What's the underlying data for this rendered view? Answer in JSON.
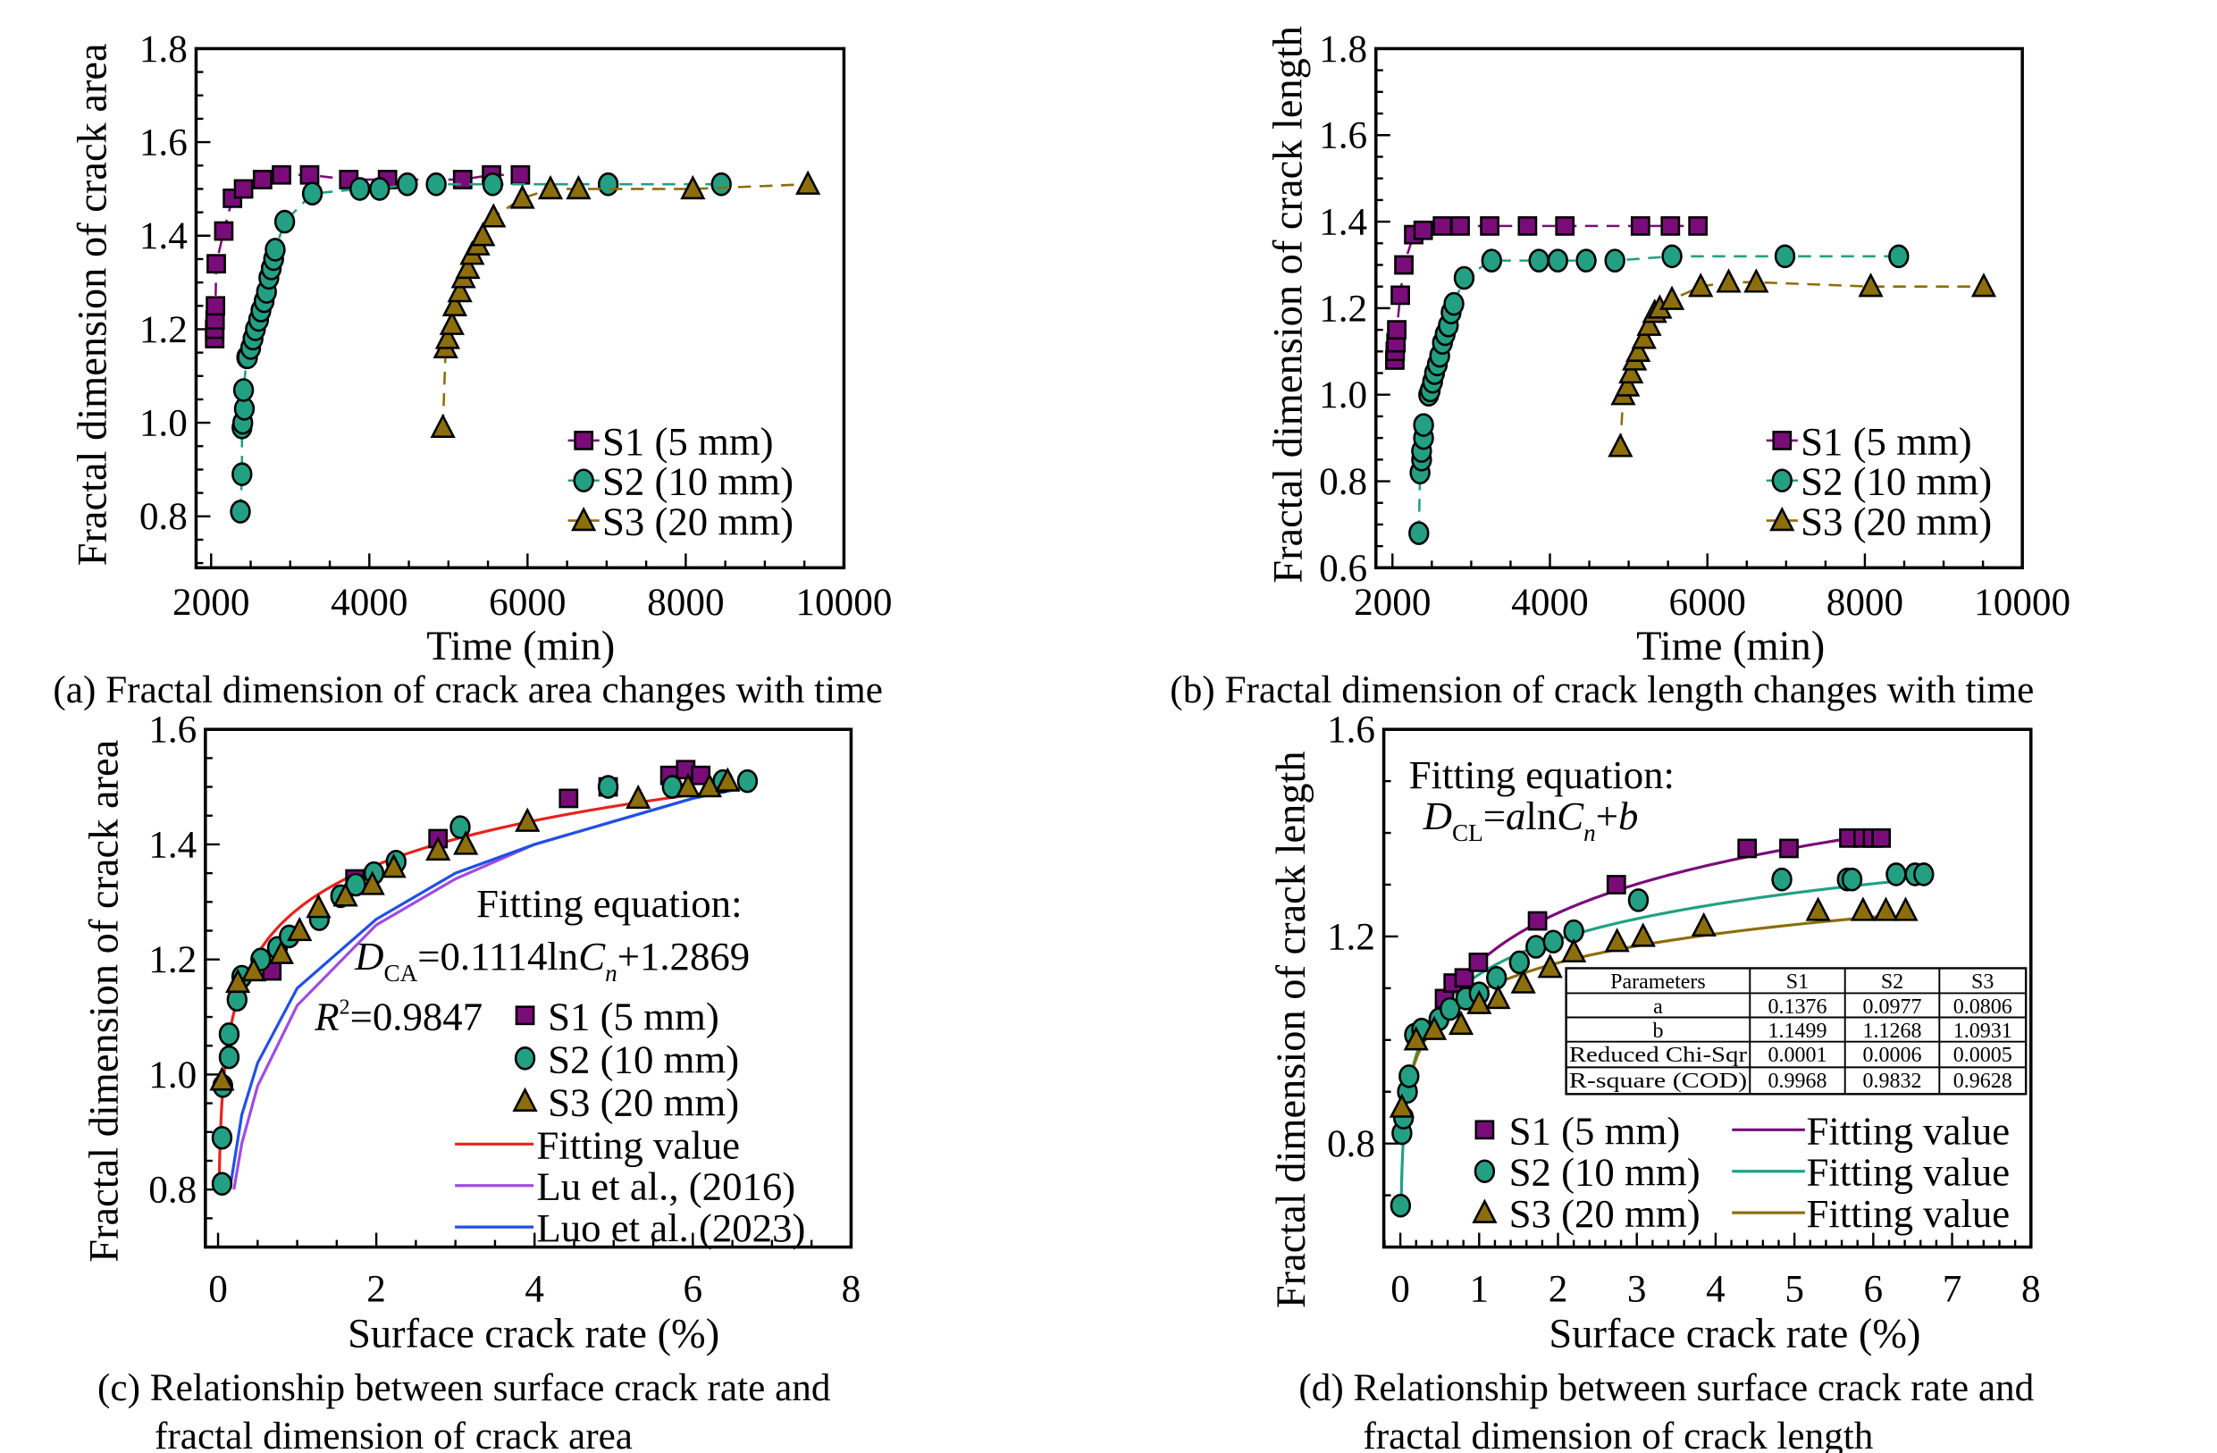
{
  "colors": {
    "S1": "#7a0c7a",
    "S2": "#23a083",
    "S3": "#8c6e0c",
    "fit_c": "#e8231c",
    "lu": "#a14be0",
    "luo": "#2050e6"
  },
  "chart_data": [
    {
      "type": "scatter",
      "caption": "(a) Fractal dimension of crack area changes with time",
      "xlabel": "Time (min)",
      "ylabel": "Fractal dimension of crack area",
      "xlim": [
        1810,
        10000
      ],
      "ylim": [
        0.69,
        1.8
      ],
      "xticks": [
        "2000",
        "4000",
        "6000",
        "8000",
        "10000"
      ],
      "yticks": [
        "0.8",
        "1.0",
        "1.2",
        "1.4",
        "1.6",
        "1.8"
      ],
      "legend_position": "bottom-right",
      "series": [
        {
          "name": "S1 (5 mm)",
          "marker": "square",
          "color": "#7a0c7a",
          "x": [
            2045,
            2045,
            2050,
            2055,
            2065,
            2160,
            2270,
            2410,
            2650,
            2890,
            3245,
            3740,
            4230,
            5180,
            5545,
            5910
          ],
          "y": [
            1.18,
            1.2,
            1.22,
            1.25,
            1.34,
            1.41,
            1.48,
            1.5,
            1.52,
            1.53,
            1.53,
            1.52,
            1.52,
            1.52,
            1.53,
            1.53
          ]
        },
        {
          "name": "S2 (10 mm)",
          "marker": "circle",
          "color": "#23a083",
          "x": [
            2370,
            2390,
            2390,
            2400,
            2420,
            2410,
            2450,
            2460,
            2500,
            2530,
            2560,
            2600,
            2630,
            2670,
            2700,
            2730,
            2760,
            2790,
            2810,
            2930,
            3280,
            3880,
            4130,
            4480,
            4845,
            5560,
            7020,
            8450
          ],
          "y": [
            0.81,
            0.89,
            0.99,
            1.0,
            1.03,
            1.07,
            1.14,
            1.14,
            1.16,
            1.18,
            1.2,
            1.22,
            1.24,
            1.26,
            1.28,
            1.31,
            1.33,
            1.35,
            1.37,
            1.43,
            1.49,
            1.5,
            1.5,
            1.51,
            1.51,
            1.51,
            1.51,
            1.51
          ]
        },
        {
          "name": "S3 (20 mm)",
          "marker": "triangle",
          "color": "#8c6e0c",
          "x": [
            4930,
            4965,
            4990,
            5045,
            5080,
            5145,
            5190,
            5245,
            5300,
            5370,
            5435,
            5570,
            5935,
            6290,
            6645,
            8090,
            9545
          ],
          "y": [
            0.99,
            1.16,
            1.18,
            1.21,
            1.25,
            1.28,
            1.31,
            1.33,
            1.36,
            1.38,
            1.4,
            1.44,
            1.48,
            1.5,
            1.5,
            1.5,
            1.51
          ]
        }
      ]
    },
    {
      "type": "scatter",
      "caption": "(b) Fractal dimension of crack length changes with time",
      "xlabel": "Time (min)",
      "ylabel": "Fractal dimension of crack length",
      "xlim": [
        1790,
        10000
      ],
      "ylim": [
        0.6,
        1.8
      ],
      "xticks": [
        "2000",
        "4000",
        "6000",
        "8000",
        "10000"
      ],
      "yticks": [
        "0.6",
        "0.8",
        "1.0",
        "1.2",
        "1.4",
        "1.6",
        "1.8"
      ],
      "legend_position": "bottom-right",
      "series": [
        {
          "name": "S1 (5 mm)",
          "marker": "square",
          "color": "#7a0c7a",
          "x": [
            2030,
            2035,
            2045,
            2055,
            2100,
            2145,
            2270,
            2390,
            2635,
            2860,
            3235,
            3715,
            4190,
            5150,
            5530,
            5880
          ],
          "y": [
            1.08,
            1.1,
            1.12,
            1.15,
            1.23,
            1.3,
            1.37,
            1.38,
            1.39,
            1.39,
            1.39,
            1.39,
            1.39,
            1.39,
            1.39,
            1.39
          ]
        },
        {
          "name": "S2 (10 mm)",
          "marker": "circle",
          "color": "#23a083",
          "x": [
            2335,
            2350,
            2370,
            2370,
            2395,
            2395,
            2460,
            2480,
            2510,
            2535,
            2570,
            2600,
            2635,
            2670,
            2710,
            2745,
            2780,
            2910,
            3260,
            3860,
            4100,
            4460,
            4825,
            5550,
            6985,
            8430
          ],
          "y": [
            0.68,
            0.82,
            0.85,
            0.87,
            0.9,
            0.93,
            1.0,
            1.01,
            1.03,
            1.05,
            1.07,
            1.09,
            1.12,
            1.14,
            1.16,
            1.19,
            1.21,
            1.27,
            1.31,
            1.31,
            1.31,
            1.31,
            1.31,
            1.32,
            1.32,
            1.32
          ]
        },
        {
          "name": "S3 (20 mm)",
          "marker": "triangle",
          "color": "#8c6e0c",
          "x": [
            4895,
            4930,
            4985,
            5030,
            5075,
            5120,
            5195,
            5260,
            5330,
            5395,
            5550,
            5915,
            6270,
            6620,
            8075,
            9510
          ],
          "y": [
            0.88,
            1.0,
            1.02,
            1.05,
            1.08,
            1.1,
            1.13,
            1.16,
            1.19,
            1.2,
            1.22,
            1.25,
            1.26,
            1.26,
            1.25,
            1.25
          ]
        }
      ]
    },
    {
      "type": "scatter",
      "caption": [
        "(c) Relationship between surface crack rate and",
        "fractal dimension of crack area"
      ],
      "xlabel": "Surface crack rate (%)",
      "ylabel": "Fractal dimension of crack area",
      "xlim": [
        -0.16,
        8
      ],
      "ylim": [
        0.7,
        1.6
      ],
      "xticks": [
        "0",
        "2",
        "4",
        "6",
        "8"
      ],
      "yticks": [
        "0.8",
        "1.0",
        "1.2",
        "1.4",
        "1.6"
      ],
      "legend_position": "bottom-right",
      "annotation": {
        "title": "Fitting equation:",
        "eq": {
          "D": "D",
          "sub1": "CA",
          "mid": "=0.1114ln",
          "C": "C",
          "sub2": "n",
          "end": "+1.2869"
        },
        "r2": {
          "R": "R",
          "sup": "2",
          "end": "=0.9847"
        }
      },
      "series": [
        {
          "name": "S1 (5 mm)",
          "marker": "square",
          "color": "#7a0c7a",
          "x": [
            0.68,
            1.73,
            2.78,
            4.43,
            4.93,
            5.71,
            5.91,
            6.1
          ],
          "y": [
            1.18,
            1.34,
            1.41,
            1.48,
            1.5,
            1.52,
            1.53,
            1.52
          ]
        },
        {
          "name": "S2 (10 mm)",
          "marker": "circle",
          "color": "#23a083",
          "x": [
            0.05,
            0.05,
            0.06,
            0.14,
            0.14,
            0.24,
            0.3,
            0.54,
            0.75,
            0.9,
            1.28,
            1.55,
            1.74,
            1.97,
            2.25,
            3.06,
            4.93,
            5.74,
            6.38,
            6.69
          ],
          "y": [
            0.81,
            0.89,
            0.98,
            1.03,
            1.07,
            1.13,
            1.17,
            1.2,
            1.22,
            1.24,
            1.27,
            1.31,
            1.33,
            1.35,
            1.37,
            1.43,
            1.5,
            1.5,
            1.51,
            1.51
          ]
        },
        {
          "name": "S3 (20 mm)",
          "marker": "triangle",
          "color": "#8c6e0c",
          "x": [
            0.05,
            0.25,
            0.45,
            0.8,
            1.03,
            1.27,
            1.61,
            1.95,
            2.22,
            2.78,
            3.13,
            3.91,
            5.31,
            5.94,
            6.21,
            6.44
          ],
          "y": [
            0.99,
            1.16,
            1.18,
            1.21,
            1.25,
            1.29,
            1.31,
            1.33,
            1.36,
            1.39,
            1.4,
            1.44,
            1.48,
            1.5,
            1.5,
            1.51
          ]
        }
      ],
      "lines": [
        {
          "name": "Fitting value",
          "color": "#e8231c",
          "a": 0.1114,
          "b": 1.2869,
          "xrange": [
            0.0127,
            6.7
          ]
        },
        {
          "name": "Lu et al., (2016)",
          "color": "#a14be0",
          "x": [
            0.2,
            0.3,
            0.5,
            1,
            2,
            3,
            4,
            5,
            6,
            6.7
          ],
          "y": [
            0.8,
            0.88,
            0.98,
            1.12,
            1.26,
            1.34,
            1.4,
            1.44,
            1.48,
            1.5
          ]
        },
        {
          "name": "Luo et al. (2023)",
          "color": "#2050e6",
          "x": [
            0.16,
            0.3,
            0.5,
            1,
            2,
            3,
            4,
            5,
            6,
            6.7
          ],
          "y": [
            0.81,
            0.93,
            1.02,
            1.15,
            1.27,
            1.35,
            1.4,
            1.44,
            1.48,
            1.5
          ]
        }
      ]
    },
    {
      "type": "scatter",
      "caption": [
        "(d) Relationship between surface crack rate and",
        "fractal dimension of crack length"
      ],
      "xlabel": "Surface crack rate (%)",
      "ylabel": "Fractal dimension of crack length",
      "xlim": [
        -0.21,
        8
      ],
      "ylim": [
        0.6,
        1.6
      ],
      "xticks": [
        "0",
        "1",
        "2",
        "3",
        "4",
        "5",
        "6",
        "7",
        "8"
      ],
      "yticks": [
        "0.8",
        "1.2",
        "1.6"
      ],
      "legend_position": "bottom-left",
      "annotation": {
        "title": "Fitting equation:",
        "eq": {
          "D": "D",
          "sub1": "CL",
          "eq": "=",
          "a": "a",
          "mid": "ln",
          "C": "C",
          "sub2": "n",
          "plus": "+",
          "b": "b"
        }
      },
      "table": {
        "header": [
          "Parameters",
          "S1",
          "S2",
          "S3"
        ],
        "rows": [
          [
            "a",
            "0.1376",
            "0.0977",
            "0.0806"
          ],
          [
            "b",
            "1.1499",
            "1.1268",
            "1.0931"
          ],
          [
            "Reduced Chi-Sqr",
            "0.0001",
            "0.0006",
            "0.0005"
          ],
          [
            "R-square (COD)",
            "0.9968",
            "0.9832",
            "0.9628"
          ]
        ]
      },
      "series": [
        {
          "name": "S1 (5 mm)",
          "marker": "square",
          "color": "#7a0c7a",
          "x": [
            0.56,
            0.67,
            0.81,
            0.99,
            1.74,
            2.74,
            4.4,
            4.93,
            5.69,
            5.87,
            5.99,
            6.1
          ],
          "y": [
            1.08,
            1.11,
            1.12,
            1.15,
            1.23,
            1.3,
            1.37,
            1.37,
            1.39,
            1.39,
            1.39,
            1.39
          ]
        },
        {
          "name": "S2 (10 mm)",
          "marker": "circle",
          "color": "#23a083",
          "x": [
            0.003,
            0.02,
            0.04,
            0.09,
            0.11,
            0.18,
            0.27,
            0.49,
            0.63,
            0.83,
            1.0,
            1.22,
            1.51,
            1.72,
            1.94,
            2.2,
            3.02,
            4.84,
            5.67,
            5.73,
            6.29,
            6.53,
            6.64
          ],
          "y": [
            0.68,
            0.82,
            0.85,
            0.9,
            0.93,
            1.01,
            1.02,
            1.04,
            1.06,
            1.08,
            1.09,
            1.12,
            1.15,
            1.18,
            1.19,
            1.21,
            1.27,
            1.31,
            1.31,
            1.31,
            1.32,
            1.32,
            1.32
          ]
        },
        {
          "name": "S3 (20 mm)",
          "marker": "triangle",
          "color": "#8c6e0c",
          "x": [
            0.02,
            0.2,
            0.43,
            0.77,
            1.0,
            1.24,
            1.56,
            1.9,
            2.2,
            2.75,
            3.08,
            3.85,
            5.3,
            5.87,
            6.16,
            6.41
          ],
          "y": [
            0.87,
            1.0,
            1.02,
            1.03,
            1.07,
            1.08,
            1.11,
            1.14,
            1.17,
            1.19,
            1.2,
            1.22,
            1.25,
            1.25,
            1.25,
            1.25
          ]
        }
      ],
      "lines": [
        {
          "name": "Fitting value",
          "color": "#7a0c7a",
          "a": 0.1376,
          "b": 1.1499,
          "xrange": [
            0.5,
            6.1
          ]
        },
        {
          "name": "Fitting value",
          "color": "#23a083",
          "a": 0.0977,
          "b": 1.1268,
          "xrange": [
            0.0127,
            6.4
          ]
        },
        {
          "name": "Fitting value",
          "color": "#8c6e0c",
          "a": 0.0806,
          "b": 1.0931,
          "xrange": [
            0.1,
            6.1
          ]
        }
      ]
    }
  ]
}
